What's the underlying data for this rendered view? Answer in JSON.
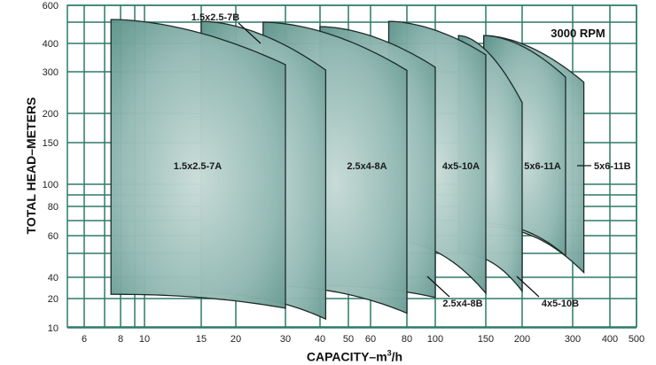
{
  "chart_data": {
    "type": "area",
    "title": "",
    "annotation": "3000 RPM",
    "xlabel": "CAPACITY–m",
    "xlabel_sup": "3",
    "xlabel_suffix": "/h",
    "ylabel": "TOTAL HEAD–METERS",
    "x_ticks": [
      6,
      8,
      10,
      15,
      20,
      30,
      40,
      50,
      60,
      80,
      100,
      150,
      200,
      300,
      400,
      500
    ],
    "x_minor_grid": [
      7,
      9
    ],
    "y_ticks": [
      600,
      400,
      300,
      200,
      150,
      100,
      80,
      60,
      40,
      20,
      10
    ],
    "y_minor_grid": [
      500,
      90,
      70,
      50
    ],
    "grid": true,
    "colors": {
      "grid": "#2f7a68",
      "fill_dark": "#5a9289",
      "fill_light": "#c9dcd8",
      "outline": "#1e2a28"
    },
    "series": [
      {
        "name": "5x6-11B",
        "q_min": 148,
        "q_max": 330,
        "head_top": [
          437,
          275
        ],
        "head_bottom": [
          66,
          42
        ]
      },
      {
        "name": "5x6-11A",
        "q_min": 148,
        "q_max": 286,
        "head_top": [
          437,
          287
        ],
        "head_bottom": [
          68,
          49
        ]
      },
      {
        "name": "4x5-10B",
        "q_min": 123,
        "q_max": 200,
        "head_top": [
          437,
          226
        ],
        "head_bottom": [
          50,
          27
        ]
      },
      {
        "name": "4x5-10A",
        "q_min": 70,
        "q_max": 150,
        "head_top": [
          505,
          360
        ],
        "head_bottom": [
          57,
          25
        ]
      },
      {
        "name": "2.5x4-8B",
        "q_min": 40,
        "q_max": 100,
        "head_top": [
          479,
          316
        ],
        "head_bottom": [
          32,
          21
        ]
      },
      {
        "name": "2.5x4-8A",
        "q_min": 25.5,
        "q_max": 80,
        "head_top": [
          500,
          305
        ],
        "head_bottom": [
          32,
          15
        ]
      },
      {
        "name": "1.5x2.5-7B",
        "q_min": 15,
        "q_max": 42,
        "head_top": [
          505,
          306
        ],
        "head_bottom": [
          25,
          13
        ]
      },
      {
        "name": "1.5x2.5-7A",
        "q_min": 7.4,
        "q_max": 30,
        "head_top": [
          516,
          325
        ],
        "head_bottom": [
          24,
          16.7
        ]
      }
    ]
  }
}
